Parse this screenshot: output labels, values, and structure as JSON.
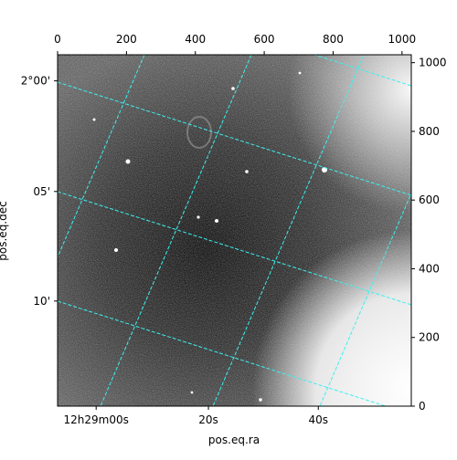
{
  "chart_data": {
    "type": "image",
    "xlabel": "pos.eq.ra",
    "ylabel": "pos.eq.dec",
    "xlim": [
      0,
      1027
    ],
    "ylim": [
      0,
      1023
    ],
    "xticks": [
      0,
      200,
      400,
      600,
      800,
      1000
    ],
    "yticks": [
      0,
      200,
      400,
      600,
      800,
      1000
    ],
    "ra_ticks": [
      {
        "value": 112,
        "label": "12h29m00s"
      },
      {
        "value": 438,
        "label": "20s"
      },
      {
        "value": 757,
        "label": "40s"
      }
    ],
    "dec_ticks": [
      {
        "value": 947,
        "label": "2°00'"
      },
      {
        "value": 625,
        "label": "05'"
      },
      {
        "value": 306,
        "label": "10'"
      }
    ]
  }
}
